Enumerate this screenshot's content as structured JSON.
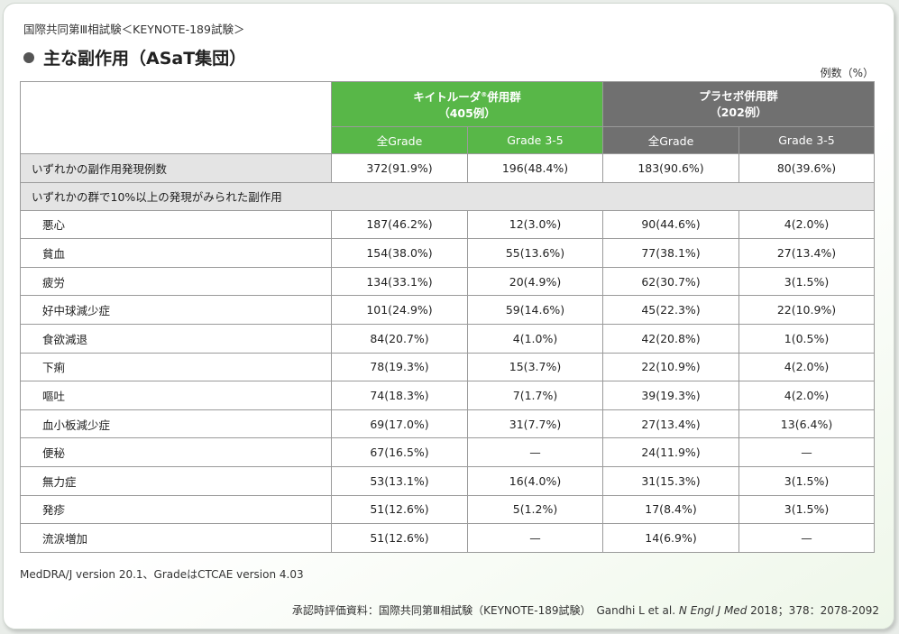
{
  "header": {
    "pre_title": "国際共同第Ⅲ相試験＜KEYNOTE-189試験＞",
    "title": "主な副作用（ASaT集団）",
    "unit": "例数（%）"
  },
  "columns": {
    "group1_name": "キイトルーダ",
    "group1_reg": "®",
    "group1_suffix": "併用群",
    "group1_n": "（405例）",
    "group2_name": "プラセボ併用群",
    "group2_n": "（202例）",
    "sub_all": "全Grade",
    "sub_g35": "Grade 3-5"
  },
  "overall_row": {
    "label": "いずれかの副作用発現例数",
    "values": [
      "372(91.9%)",
      "196(48.4%)",
      "183(90.6%)",
      "80(39.6%)"
    ]
  },
  "section_label": "いずれかの群で10%以上の発現がみられた副作用",
  "rows": [
    {
      "label": "悪心",
      "values": [
        "187(46.2%)",
        "12(3.0%)",
        "90(44.6%)",
        "4(2.0%)"
      ]
    },
    {
      "label": "貧血",
      "values": [
        "154(38.0%)",
        "55(13.6%)",
        "77(38.1%)",
        "27(13.4%)"
      ]
    },
    {
      "label": "疲労",
      "values": [
        "134(33.1%)",
        "20(4.9%)",
        "62(30.7%)",
        "3(1.5%)"
      ]
    },
    {
      "label": "好中球減少症",
      "values": [
        "101(24.9%)",
        "59(14.6%)",
        "45(22.3%)",
        "22(10.9%)"
      ]
    },
    {
      "label": "食欲減退",
      "values": [
        "84(20.7%)",
        "4(1.0%)",
        "42(20.8%)",
        "1(0.5%)"
      ]
    },
    {
      "label": "下痢",
      "values": [
        "78(19.3%)",
        "15(3.7%)",
        "22(10.9%)",
        "4(2.0%)"
      ]
    },
    {
      "label": "嘔吐",
      "values": [
        "74(18.3%)",
        "7(1.7%)",
        "39(19.3%)",
        "4(2.0%)"
      ]
    },
    {
      "label": "血小板減少症",
      "values": [
        "69(17.0%)",
        "31(7.7%)",
        "27(13.4%)",
        "13(6.4%)"
      ]
    },
    {
      "label": "便秘",
      "values": [
        "67(16.5%)",
        "—",
        "24(11.9%)",
        "—"
      ]
    },
    {
      "label": "無力症",
      "values": [
        "53(13.1%)",
        "16(4.0%)",
        "31(15.3%)",
        "3(1.5%)"
      ]
    },
    {
      "label": "発疹",
      "values": [
        "51(12.6%)",
        "5(1.2%)",
        "17(8.4%)",
        "3(1.5%)"
      ]
    },
    {
      "label": "流涙増加",
      "values": [
        "51(12.6%)",
        "—",
        "14(6.9%)",
        "—"
      ]
    }
  ],
  "footer": {
    "note": "MedDRA/J version 20.1、GradeはCTCAE version 4.03",
    "source_prefix": "承認時評価資料：国際共同第Ⅲ相試験（KEYNOTE-189試験）　Gandhi L et al.",
    "source_journal": "N Engl J Med",
    "source_suffix": "2018；378：2078-2092"
  },
  "colors": {
    "green": "#58b748",
    "gray_header": "#707070",
    "row_gray": "#e4e4e4"
  }
}
